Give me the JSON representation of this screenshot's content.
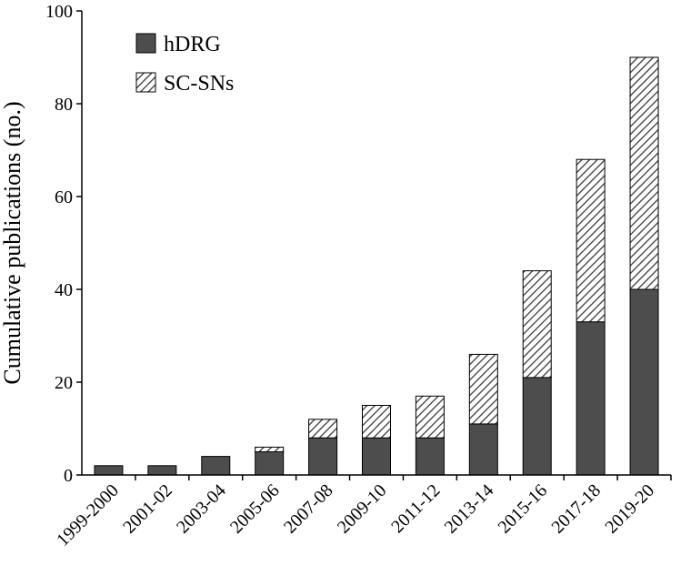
{
  "chart_data": {
    "type": "bar",
    "stacked": true,
    "categories": [
      "1999-2000",
      "2001-02",
      "2003-04",
      "2005-06",
      "2007-08",
      "2009-10",
      "2011-12",
      "2013-14",
      "2015-16",
      "2017-18",
      "2019-20"
    ],
    "series": [
      {
        "name": "hDRG",
        "values": [
          2,
          2,
          4,
          5,
          8,
          8,
          8,
          11,
          21,
          33,
          40
        ],
        "fill": "solid",
        "color": "#4d4d4d"
      },
      {
        "name": "SC-SNs",
        "values": [
          0,
          0,
          0,
          1,
          4,
          7,
          9,
          15,
          23,
          35,
          50
        ],
        "fill": "hatched",
        "color": "#4d4d4d"
      }
    ],
    "title": "",
    "xlabel": "",
    "ylabel": "Cumulative publications (no.)",
    "ylim": [
      0,
      100
    ],
    "yticks": [
      0,
      20,
      40,
      60,
      80,
      100
    ],
    "grid": false,
    "legend_position": "top-left"
  }
}
